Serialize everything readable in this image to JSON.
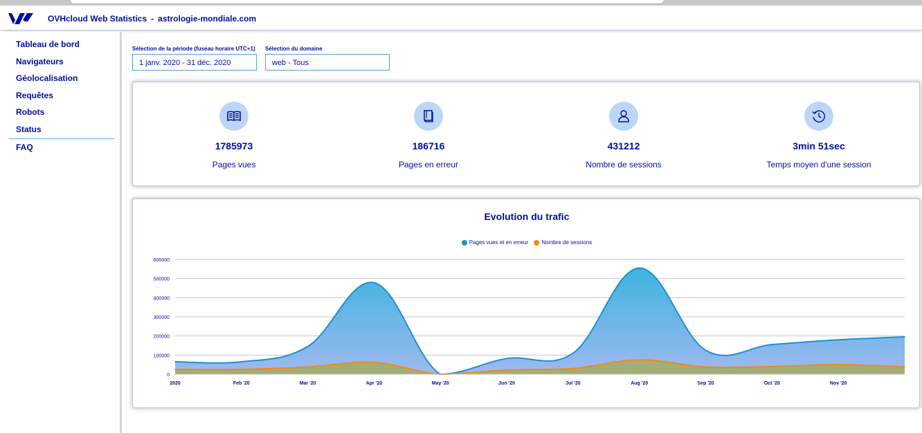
{
  "header": {
    "app_name": "OVHcloud Web Statistics",
    "separator": "-",
    "domain": "astrologie-mondiale.com"
  },
  "sidebar": {
    "items": [
      {
        "label": "Tableau de bord"
      },
      {
        "label": "Navigateurs"
      },
      {
        "label": "Géolocalisation"
      },
      {
        "label": "Requêtes"
      },
      {
        "label": "Robots"
      },
      {
        "label": "Status"
      },
      {
        "label": "FAQ"
      }
    ]
  },
  "filters": {
    "period_label": "Sélection de la période (fuseau horaire UTC+1)",
    "period_value": "1 janv. 2020 - 31 déc. 2020",
    "domain_label": "Sélection du domaine",
    "domain_value": "web - Tous"
  },
  "stats": [
    {
      "icon": "open-book-icon",
      "value": "1785973",
      "label": "Pages vues"
    },
    {
      "icon": "error-book-icon",
      "value": "186716",
      "label": "Pages en erreur"
    },
    {
      "icon": "user-icon",
      "value": "431212",
      "label": "Nombre de sessions"
    },
    {
      "icon": "clock-history-icon",
      "value": "3min 51sec",
      "label": "Temps moyen d'une session"
    }
  ],
  "colors": {
    "brand": "#000e9c",
    "series_blue": "#1f8fce",
    "series_orange": "#f28a12",
    "icon_bg": "#bcd6f7"
  },
  "chart_data": {
    "type": "area",
    "title": "Evolution du trafic",
    "legend_position": "top-center",
    "grid": true,
    "ylim": [
      0,
      600000
    ],
    "yticks": [
      0,
      100000,
      200000,
      300000,
      400000,
      500000,
      600000
    ],
    "xtick_labels": [
      "2020",
      "Feb '20",
      "Mar '20",
      "Apr '20",
      "May '20",
      "Jun '20",
      "Jul '20",
      "Aug '20",
      "Sep '20",
      "Oct '20",
      "Nov '20"
    ],
    "x": [
      "2020-01-01",
      "2020-02-01",
      "2020-03-01",
      "2020-04-01",
      "2020-05-01",
      "2020-06-01",
      "2020-07-01",
      "2020-08-01",
      "2020-09-01",
      "2020-10-01",
      "2020-11-01",
      "2020-12-01"
    ],
    "series": [
      {
        "name": "Pages vues et en erreur",
        "values": [
          65000,
          65000,
          145000,
          478000,
          0,
          82000,
          110000,
          555000,
          125000,
          155000,
          180000,
          195000
        ]
      },
      {
        "name": "Nombre de sessions",
        "values": [
          25000,
          25000,
          38000,
          62000,
          0,
          22000,
          30000,
          75000,
          38000,
          40000,
          50000,
          38000
        ]
      }
    ]
  }
}
